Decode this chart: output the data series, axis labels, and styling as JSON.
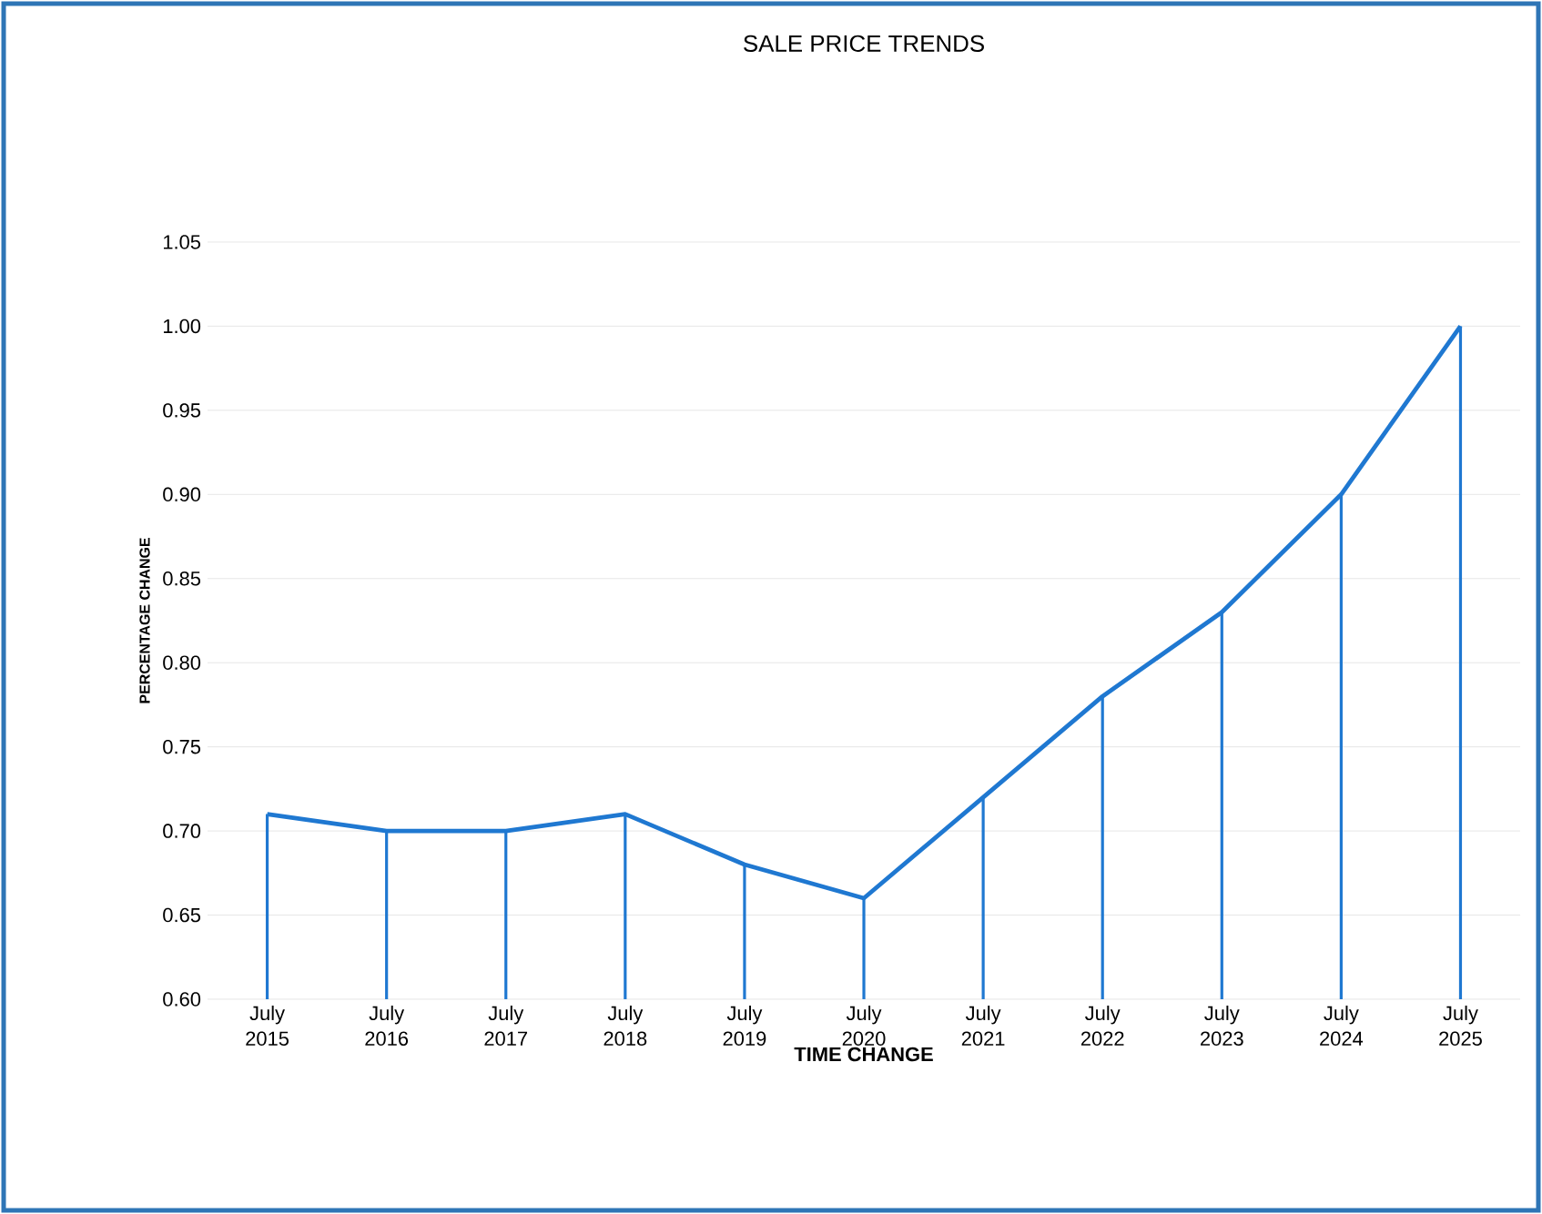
{
  "chart_data": {
    "type": "line",
    "title": "SALE PRICE TRENDS",
    "xlabel": "TIME CHANGE",
    "ylabel": "PERCENTAGE CHANGE",
    "categories": [
      "July 2015",
      "July 2016",
      "July 2017",
      "July 2018",
      "July 2019",
      "July 2020",
      "July 2021",
      "July 2022",
      "July 2023",
      "July 2024",
      "July 2025"
    ],
    "series": [
      {
        "color": "#1f78d1",
        "values": [
          0.71,
          0.7,
          0.7,
          0.71,
          0.68,
          0.66,
          0.72,
          0.78,
          0.83,
          0.9,
          1.0
        ]
      },
      {
        "type": "bar",
        "color": "#1f78d1",
        "values": [
          0.71,
          0.7,
          0.7,
          0.71,
          0.68,
          0.66,
          0.72,
          0.78,
          0.83,
          0.9,
          1.0
        ]
      }
    ],
    "ylim": [
      0.6,
      1.05
    ],
    "yticks": [
      {
        "value": 0.6,
        "label": "0.60"
      },
      {
        "value": 0.65,
        "label": "0.65"
      },
      {
        "value": 0.7,
        "label": "0.70"
      },
      {
        "value": 0.75,
        "label": "0.75"
      },
      {
        "value": 0.8,
        "label": "0.80"
      },
      {
        "value": 0.85,
        "label": "0.85"
      },
      {
        "value": 0.9,
        "label": "0.90"
      },
      {
        "value": 0.95,
        "label": "0.95"
      },
      {
        "value": 1.0,
        "label": "1.00"
      },
      {
        "value": 1.05,
        "label": "1.05"
      }
    ],
    "grid": "y",
    "marker": "none",
    "line_style": "solid"
  }
}
